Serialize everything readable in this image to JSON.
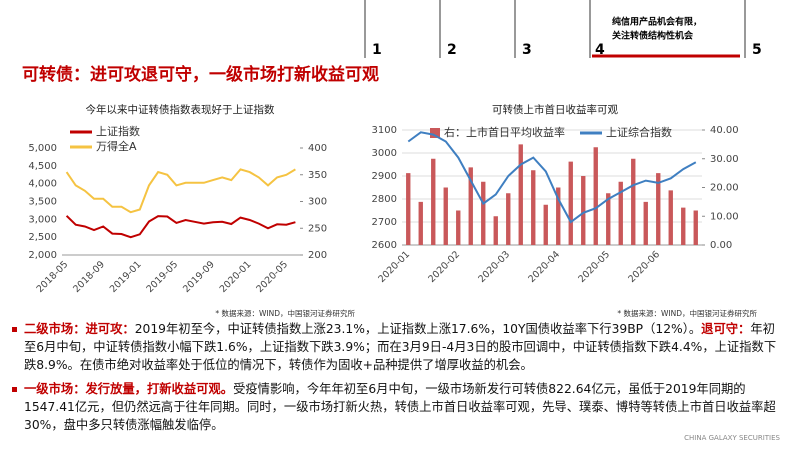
{
  "header": {
    "title": "可转债：进可攻退可守，一级市场打新收益可观",
    "nav": [
      "1",
      "2",
      "3",
      "4",
      "5"
    ],
    "nav_note": [
      "纯信用产品机会有限，",
      "关注转债结构性机会"
    ]
  },
  "chart_data": [
    {
      "type": "line",
      "title": "今年以来中证转债指数表现好于上证指数",
      "source": "* 数据来源：WIND，中国银河证券研究所",
      "categories": [
        "2018-05",
        null,
        null,
        null,
        "2018-09",
        null,
        null,
        null,
        "2019-01",
        null,
        null,
        null,
        "2019-05",
        null,
        null,
        null,
        "2019-09",
        null,
        null,
        null,
        "2020-01",
        null,
        null,
        null,
        "2020-05",
        null
      ],
      "series": [
        {
          "name": "上证指数",
          "color": "#c00000",
          "axis": "y",
          "values": [
            3100,
            2850,
            2800,
            2700,
            2800,
            2600,
            2590,
            2500,
            2580,
            2940,
            3090,
            3080,
            2900,
            2980,
            2930,
            2880,
            2920,
            2930,
            2870,
            3050,
            2980,
            2880,
            2750,
            2860,
            2850,
            2920
          ]
        },
        {
          "name": "万得全A",
          "color": "#f5c342",
          "axis": "y2",
          "values": [
            355,
            330,
            320,
            305,
            305,
            290,
            290,
            280,
            285,
            330,
            355,
            350,
            330,
            335,
            335,
            335,
            340,
            345,
            340,
            360,
            355,
            345,
            330,
            345,
            350,
            360
          ]
        }
      ],
      "ylim": [
        2000,
        5000
      ],
      "yticks": [
        {
          "value": 2000,
          "label": "2,000"
        },
        {
          "value": 2500,
          "label": "2,500"
        },
        {
          "value": 3000,
          "label": "3,000"
        },
        {
          "value": 3500,
          "label": "3,500"
        },
        {
          "value": 4000,
          "label": "4,000"
        },
        {
          "value": 4500,
          "label": "4,500"
        },
        {
          "value": 5000,
          "label": "5,000"
        }
      ],
      "y2lim": [
        200,
        400
      ],
      "y2ticks": [
        200,
        250,
        300,
        350,
        400
      ],
      "grid": false
    },
    {
      "type": "bar",
      "title": "可转债上市首日收益率可观",
      "source": "* 数据来源：WIND，中国银河证券研究所",
      "categories": [
        "2020-01",
        null,
        null,
        null,
        "2020-02",
        null,
        null,
        null,
        "2020-03",
        null,
        null,
        null,
        "2020-04",
        null,
        null,
        null,
        "2020-05",
        null,
        null,
        null,
        "2020-06",
        null,
        null,
        null
      ],
      "series": [
        {
          "name": "右：上市首日平均收益率",
          "color": "#c9585a",
          "axis": "y2",
          "type": "bar",
          "values": [
            25,
            15,
            30,
            20,
            12,
            27,
            22,
            10,
            18,
            35,
            26,
            14,
            20,
            29,
            24,
            34,
            18,
            22,
            30,
            15,
            25,
            19,
            13,
            12
          ]
        },
        {
          "name": "上证综合指数",
          "color": "#3f7fc1",
          "axis": "y",
          "type": "line",
          "values": [
            3050,
            3090,
            3080,
            3050,
            2980,
            2880,
            2780,
            2820,
            2900,
            2950,
            2980,
            2920,
            2800,
            2700,
            2740,
            2760,
            2800,
            2830,
            2860,
            2880,
            2870,
            2890,
            2930,
            2960
          ]
        }
      ],
      "ylim": [
        2600,
        3100
      ],
      "yticks": [
        2600,
        2700,
        2800,
        2900,
        3000,
        3100
      ],
      "y2lim": [
        0,
        40
      ],
      "y2ticks": [
        {
          "value": 0,
          "label": "0.00"
        },
        {
          "value": 10,
          "label": "10.00"
        },
        {
          "value": 20,
          "label": "20.00"
        },
        {
          "value": 30,
          "label": "30.00"
        },
        {
          "value": 40,
          "label": "40.00"
        }
      ],
      "grid": true
    }
  ],
  "bullets": [
    [
      {
        "text": "二级市场：进可攻：",
        "emphasis": true
      },
      {
        "text": "2019年初至今，中证转债指数上涨23.1%，上证指数上涨17.6%，10Y国债收益率下行39BP（12%）。",
        "emphasis": false
      },
      {
        "text": "退可守：",
        "emphasis": true
      },
      {
        "text": "年初至6月中旬，中证转债指数小幅下跌1.6%，上证指数下跌3.9%；而在3月9日-4月3日的股市回调中，中证转债指数下跌4.4%，上证指数下跌8.9%。在债市绝对收益率处于低位的情况下，转债作为固收+品种提供了增厚收益的机会。",
        "emphasis": false
      }
    ],
    [
      {
        "text": "一级市场：发行放量，打新收益可观。",
        "emphasis": true
      },
      {
        "text": "受疫情影响，今年年初至6月中旬，一级市场新发行可转债822.64亿元，虽低于2019年同期的1547.41亿元，但仍然远高于往年同期。同时，一级市场打新火热，转债上市首日收益率可观，先导、璞泰、博特等转债上市首日收益率超30%，盘中多只转债涨幅触发临停。",
        "emphasis": false
      }
    ]
  ],
  "footer": "CHINA GALAXY SECURITIES"
}
